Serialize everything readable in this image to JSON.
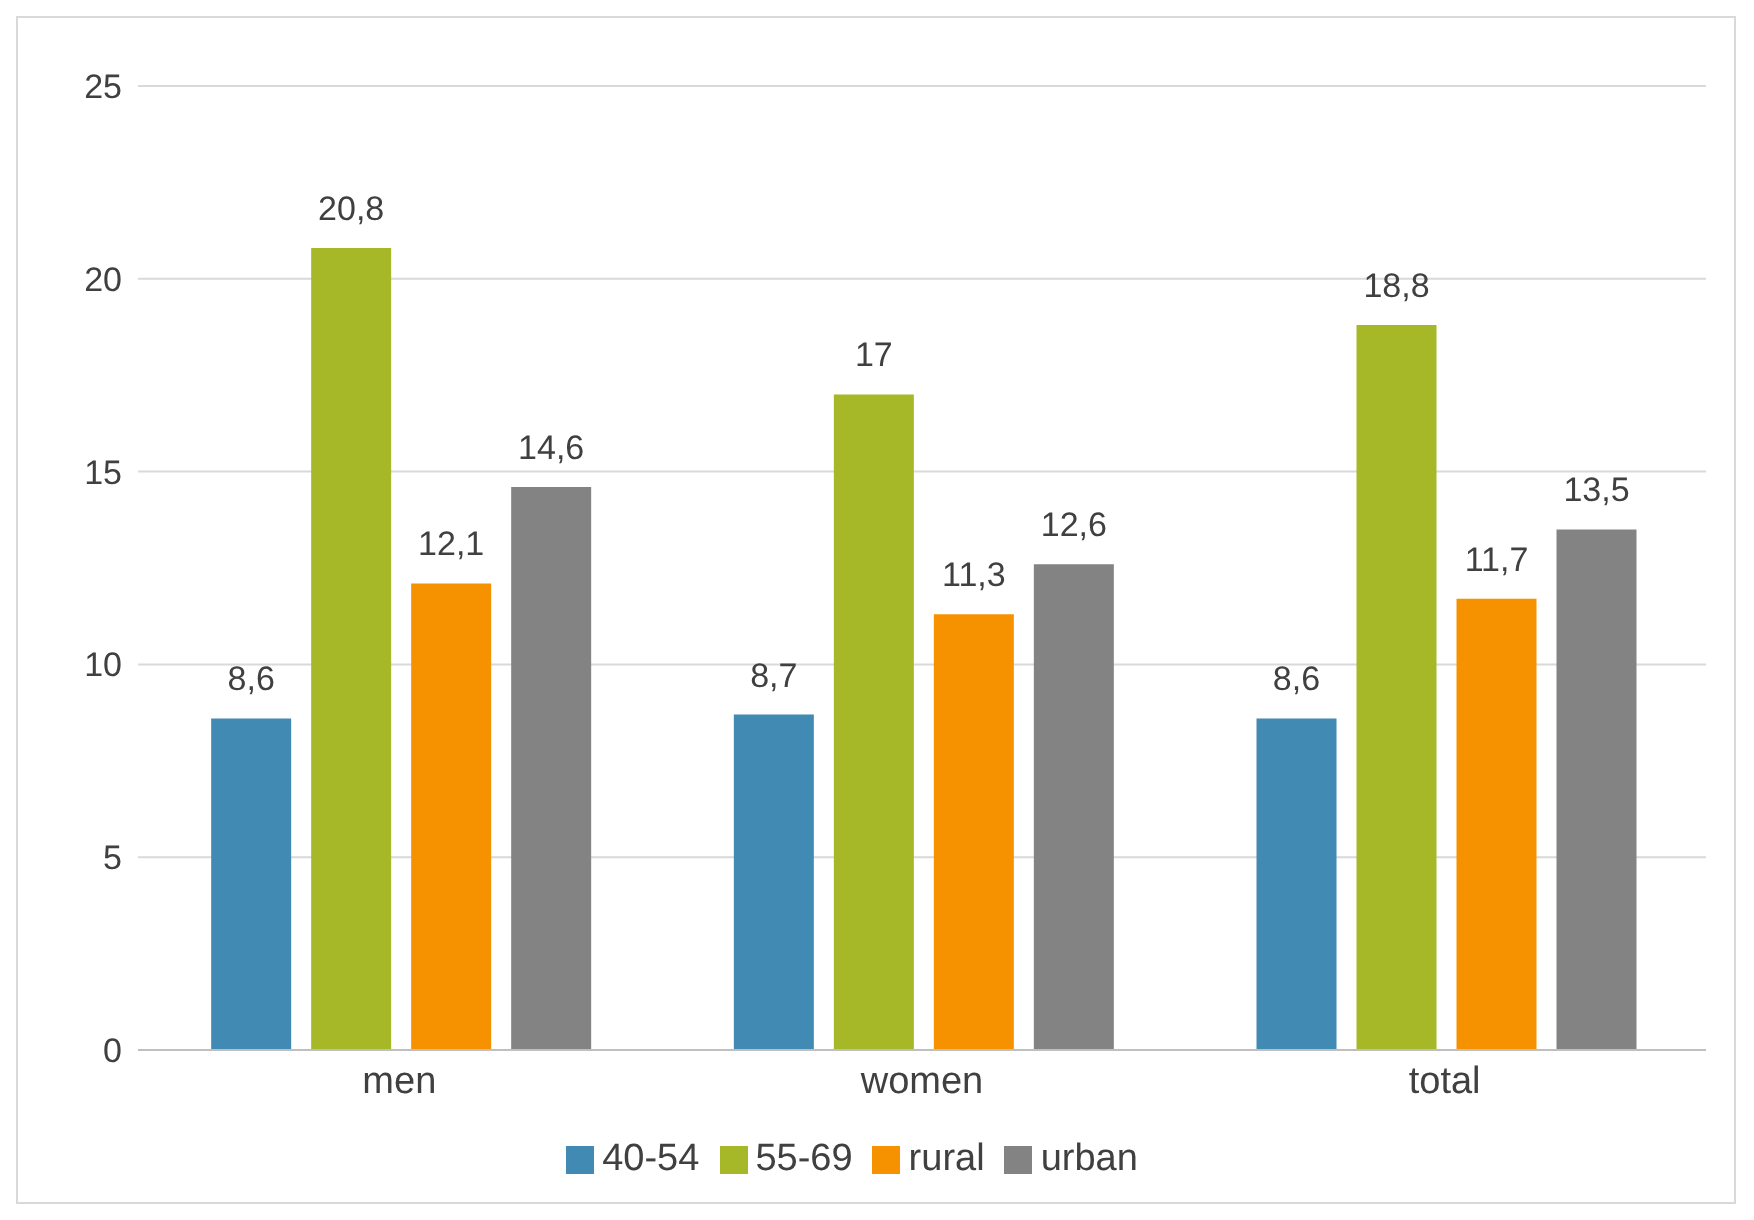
{
  "chart_data": {
    "type": "bar",
    "categories": [
      "men",
      "women",
      "total"
    ],
    "series": [
      {
        "name": "40-54",
        "color": "#418ab3",
        "values": [
          8.6,
          8.7,
          8.6
        ],
        "value_labels": [
          "8,6",
          "8,7",
          "8,6"
        ]
      },
      {
        "name": "55-69",
        "color": "#a6b727",
        "values": [
          20.8,
          17,
          18.8
        ],
        "value_labels": [
          "20,8",
          "17",
          "18,8"
        ]
      },
      {
        "name": "rural",
        "color": "#f69200",
        "values": [
          12.1,
          11.3,
          11.7
        ],
        "value_labels": [
          "12,1",
          "11,3",
          "11,7"
        ]
      },
      {
        "name": "urban",
        "color": "#838383",
        "values": [
          14.6,
          12.6,
          13.5
        ],
        "value_labels": [
          "14,6",
          "12,6",
          "13,5"
        ]
      }
    ],
    "ylim": [
      0,
      25
    ],
    "yticks": [
      0,
      5,
      10,
      15,
      20,
      25
    ],
    "grid": "y",
    "legend": "bottom"
  }
}
